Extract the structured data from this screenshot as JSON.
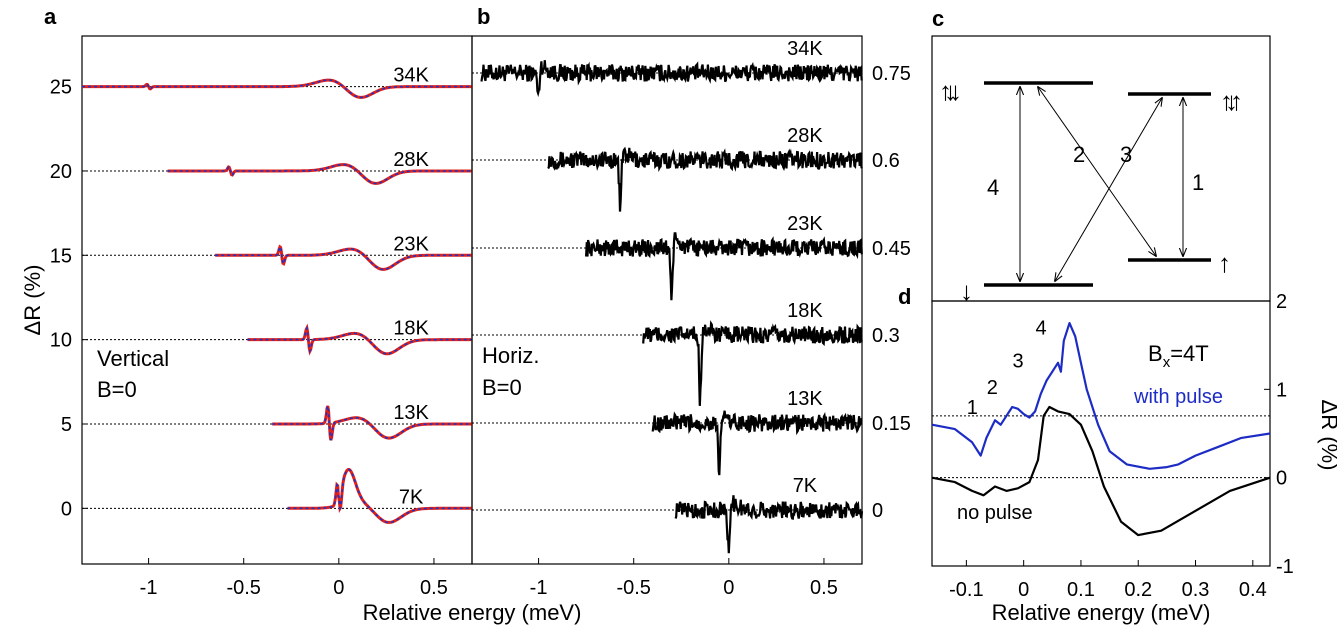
{
  "figure": {
    "panel_labels": [
      "a",
      "b",
      "c",
      "d"
    ]
  },
  "colors": {
    "fit": "#e0201b",
    "measured": "#1c33c8",
    "noise": "#000000",
    "blue_trace": "#1d2cc4"
  },
  "chart_data": [
    {
      "panel": "a",
      "type": "line",
      "xlabel": "Relative energy (meV)",
      "ylabel": "ΔR (%)",
      "xlim": [
        -1.35,
        0.7
      ],
      "ylim": [
        -3.3,
        28
      ],
      "xticks": [
        "-1",
        "-0.5",
        "0",
        "0.5"
      ],
      "xtick_values": [
        -1,
        -0.5,
        0,
        0.5
      ],
      "yticks": [
        "0",
        "5",
        "10",
        "15",
        "20",
        "25"
      ],
      "ytick_values": [
        0,
        5,
        10,
        15,
        20,
        25
      ],
      "annotations": [
        "Vertical",
        "B=0"
      ],
      "series": [
        {
          "name": "34K",
          "offset": 25,
          "x_start": -1.35,
          "sharp": -1.0,
          "sharp_amp": 0.4,
          "dip_center": 0.1,
          "dip_amp": 0.8
        },
        {
          "name": "28K",
          "offset": 20,
          "x_start": -0.9,
          "sharp": -0.57,
          "sharp_amp": 0.7,
          "dip_center": 0.18,
          "dip_amp": 0.9
        },
        {
          "name": "23K",
          "offset": 15,
          "x_start": -0.65,
          "sharp": -0.3,
          "sharp_amp": 1.5,
          "dip_center": 0.22,
          "dip_amp": 1.0
        },
        {
          "name": "18K",
          "offset": 10,
          "x_start": -0.48,
          "sharp": -0.16,
          "sharp_amp": 2.0,
          "dip_center": 0.24,
          "dip_amp": 1.0
        },
        {
          "name": "13K",
          "offset": 5,
          "x_start": -0.35,
          "sharp": -0.05,
          "sharp_amp": 3.0,
          "dip_center": 0.25,
          "dip_amp": 1.0
        },
        {
          "name": "7K",
          "offset": 0,
          "x_start": -0.27,
          "sharp": 0.0,
          "sharp_amp": 3.5,
          "dip_center": 0.25,
          "dip_amp": 1.0
        }
      ]
    },
    {
      "panel": "b",
      "type": "line",
      "xlim": [
        -1.35,
        0.7
      ],
      "xticks": [
        "-1",
        "-0.5",
        "0",
        "0.5"
      ],
      "xtick_values": [
        -1,
        -0.5,
        0,
        0.5
      ],
      "yticks": [
        "0",
        "0.15",
        "0.3",
        "0.45",
        "0.6",
        "0.75"
      ],
      "ytick_values": [
        0,
        0.15,
        0.3,
        0.45,
        0.6,
        0.75
      ],
      "annotations": [
        "Horiz.",
        "B=0"
      ],
      "series": [
        {
          "name": "34K",
          "offset": 0.75,
          "x_start": -1.3,
          "sharp": -1.0,
          "depth": 0.05
        },
        {
          "name": "28K",
          "offset": 0.6,
          "x_start": -0.95,
          "sharp": -0.57,
          "depth": 0.09
        },
        {
          "name": "23K",
          "offset": 0.45,
          "x_start": -0.75,
          "sharp": -0.3,
          "depth": 0.09
        },
        {
          "name": "18K",
          "offset": 0.3,
          "x_start": -0.45,
          "sharp": -0.15,
          "depth": 0.12
        },
        {
          "name": "13K",
          "offset": 0.15,
          "x_start": -0.4,
          "sharp": -0.05,
          "depth": 0.11
        },
        {
          "name": "7K",
          "offset": 0,
          "x_start": -0.28,
          "sharp": 0.0,
          "depth": 0.08
        }
      ]
    },
    {
      "panel": "c",
      "type": "diagram",
      "transition_labels": [
        "4",
        "2",
        "3",
        "1"
      ],
      "spin_glyphs": {
        "top_left": "↑↓↓",
        "top_right": "↑↓↑",
        "bottom_left": "↓",
        "bottom_right": "↑"
      }
    },
    {
      "panel": "d",
      "type": "line",
      "xlabel": "Relative energy (meV)",
      "ylabel": "ΔR (%)",
      "xlim": [
        -0.16,
        0.43
      ],
      "ylim": [
        -1,
        2
      ],
      "xticks": [
        "-0.1",
        "0",
        "0.1",
        "0.2",
        "0.3",
        "0.4"
      ],
      "xtick_values": [
        -0.1,
        0,
        0.1,
        0.2,
        0.3,
        0.4
      ],
      "yticks": [
        "-1",
        "0",
        "1",
        "2"
      ],
      "ytick_values": [
        -1,
        0,
        1,
        2
      ],
      "annotations": [
        "Bx=4T",
        "with pulse",
        "no pulse"
      ],
      "peak_labels": [
        "1",
        "2",
        "3",
        "4"
      ],
      "series": [
        {
          "name": "with pulse",
          "baseline": 0.7,
          "x": [
            -0.16,
            -0.12,
            -0.09,
            -0.075,
            -0.065,
            -0.05,
            -0.04,
            -0.03,
            -0.02,
            -0.01,
            0.0,
            0.01,
            0.02,
            0.03,
            0.04,
            0.05,
            0.06,
            0.065,
            0.07,
            0.08,
            0.09,
            0.1,
            0.11,
            0.13,
            0.15,
            0.18,
            0.22,
            0.25,
            0.27,
            0.3,
            0.34,
            0.38,
            0.43
          ],
          "y": [
            0.6,
            0.55,
            0.4,
            0.25,
            0.45,
            0.65,
            0.6,
            0.7,
            0.8,
            0.78,
            0.72,
            0.68,
            0.75,
            0.95,
            1.1,
            1.2,
            1.3,
            1.2,
            1.55,
            1.75,
            1.6,
            1.3,
            1.0,
            0.6,
            0.3,
            0.15,
            0.1,
            0.12,
            0.15,
            0.25,
            0.35,
            0.45,
            0.5
          ]
        },
        {
          "name": "no pulse",
          "baseline": 0,
          "x": [
            -0.16,
            -0.12,
            -0.09,
            -0.07,
            -0.05,
            -0.03,
            -0.01,
            0.01,
            0.025,
            0.035,
            0.045,
            0.06,
            0.08,
            0.1,
            0.12,
            0.14,
            0.17,
            0.2,
            0.24,
            0.28,
            0.32,
            0.36,
            0.43
          ],
          "y": [
            0.0,
            -0.05,
            -0.15,
            -0.2,
            -0.1,
            -0.15,
            -0.12,
            -0.05,
            0.2,
            0.7,
            0.8,
            0.75,
            0.72,
            0.6,
            0.3,
            -0.1,
            -0.5,
            -0.65,
            -0.6,
            -0.45,
            -0.3,
            -0.15,
            0.0
          ]
        }
      ]
    }
  ]
}
